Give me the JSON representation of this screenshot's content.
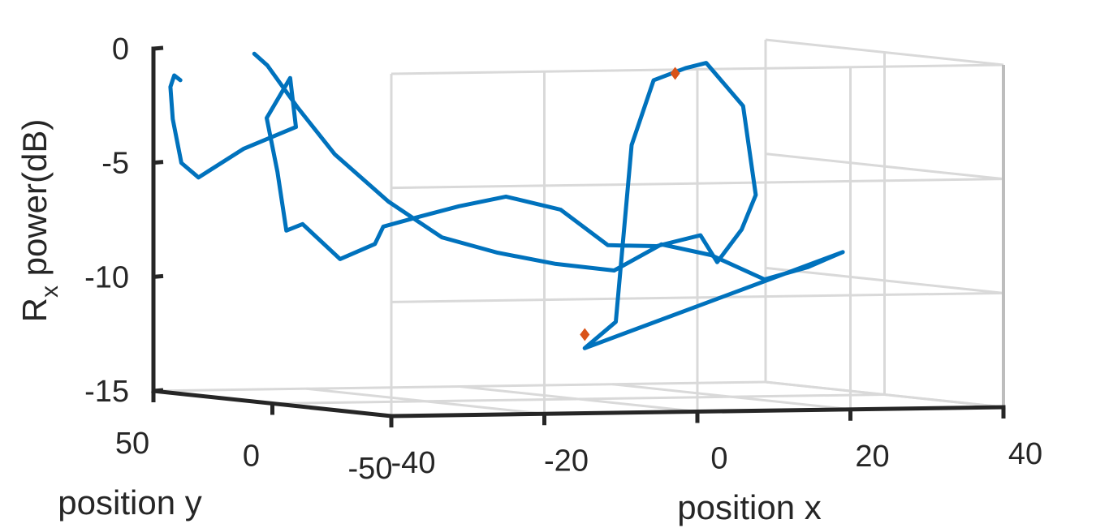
{
  "chart_data": {
    "type": "line",
    "projection": "3d",
    "xlabel": "position x",
    "ylabel": "position y",
    "zlabel_base": "R",
    "zlabel_sub": "x",
    "zlabel_rest": " power(dB)",
    "xlim": [
      -40,
      40
    ],
    "ylim": [
      -50,
      50
    ],
    "zlim": [
      -15,
      0
    ],
    "x_ticks": [
      "-40",
      "-20",
      "0",
      "20",
      "40"
    ],
    "y_ticks": [
      "50",
      "0",
      "-50"
    ],
    "z_ticks": [
      "0",
      "-5",
      "-10",
      "-15"
    ],
    "grid": true,
    "series": [
      {
        "color": "#0072BD",
        "points": [
          [
            -29.0,
            43.0,
            -0.2
          ],
          [
            -27.9,
            41.0,
            -0.7
          ],
          [
            -25.5,
            36.0,
            -2.5
          ],
          [
            -22.5,
            30.0,
            -4.5
          ],
          [
            -18.0,
            22.0,
            -6.5
          ],
          [
            -13.5,
            14.0,
            -8.0
          ],
          [
            -9.0,
            5.0,
            -8.6
          ],
          [
            -4.5,
            -5.0,
            -9.0
          ],
          [
            0.0,
            -15.0,
            -9.2
          ],
          [
            4.0,
            -22.0,
            -8.0
          ],
          [
            8.0,
            -30.0,
            -8.4
          ],
          [
            12.5,
            -38.0,
            -9.4
          ],
          [
            16.0,
            -45.0,
            -8.8
          ],
          [
            19.0,
            -50.0,
            -8.1
          ],
          [
            -11.0,
            -38.0,
            -12.3
          ],
          [
            -6.0,
            -35.0,
            -11.2
          ],
          [
            -3.0,
            -32.0,
            -3.5
          ],
          [
            0.5,
            -30.0,
            -0.7
          ],
          [
            5.0,
            -29.0,
            -0.2
          ],
          [
            8.0,
            -28.0,
            0.0
          ],
          [
            12.5,
            -29.0,
            -1.9
          ],
          [
            14.0,
            -29.5,
            -5.8
          ],
          [
            12.0,
            -30.0,
            -7.3
          ],
          [
            8.5,
            -31.0,
            -8.7
          ],
          [
            6.0,
            -32.0,
            -7.5
          ],
          [
            1.5,
            -28.0,
            -8.0
          ],
          [
            -3.0,
            -22.0,
            -8.0
          ],
          [
            -7.0,
            -15.0,
            -6.5
          ],
          [
            -11.5,
            -6.5,
            -6.0
          ],
          [
            -15.0,
            2.0,
            -6.5
          ],
          [
            -18.0,
            8.5,
            -7.0
          ],
          [
            -21.0,
            14.5,
            -7.5
          ],
          [
            -21.0,
            18.0,
            -8.3
          ],
          [
            -24.0,
            23.0,
            -9.0
          ],
          [
            -27.5,
            27.5,
            -7.5
          ],
          [
            -29.0,
            29.5,
            -7.8
          ],
          [
            -28.0,
            36.5,
            -5.3
          ],
          [
            -28.0,
            41.0,
            -3.0
          ],
          [
            -24.0,
            44.0,
            -1.3
          ],
          [
            -22.0,
            48.0,
            -3.5
          ],
          [
            -27.0,
            54.0,
            -4.5
          ],
          [
            -31.0,
            60.0,
            -5.8
          ],
          [
            -32.0,
            64.0,
            -5.2
          ],
          [
            -32.5,
            66.0,
            -3.3
          ],
          [
            -32.5,
            67.0,
            -1.9
          ],
          [
            -32.0,
            67.0,
            -1.4
          ],
          [
            -31.5,
            66.0,
            -1.6
          ]
        ]
      }
    ],
    "markers": [
      {
        "color": "#D95319",
        "points": [
          [
            -8.5,
            -30.0,
            -11.8
          ],
          [
            3.0,
            -31.0,
            -0.4
          ]
        ]
      }
    ]
  }
}
